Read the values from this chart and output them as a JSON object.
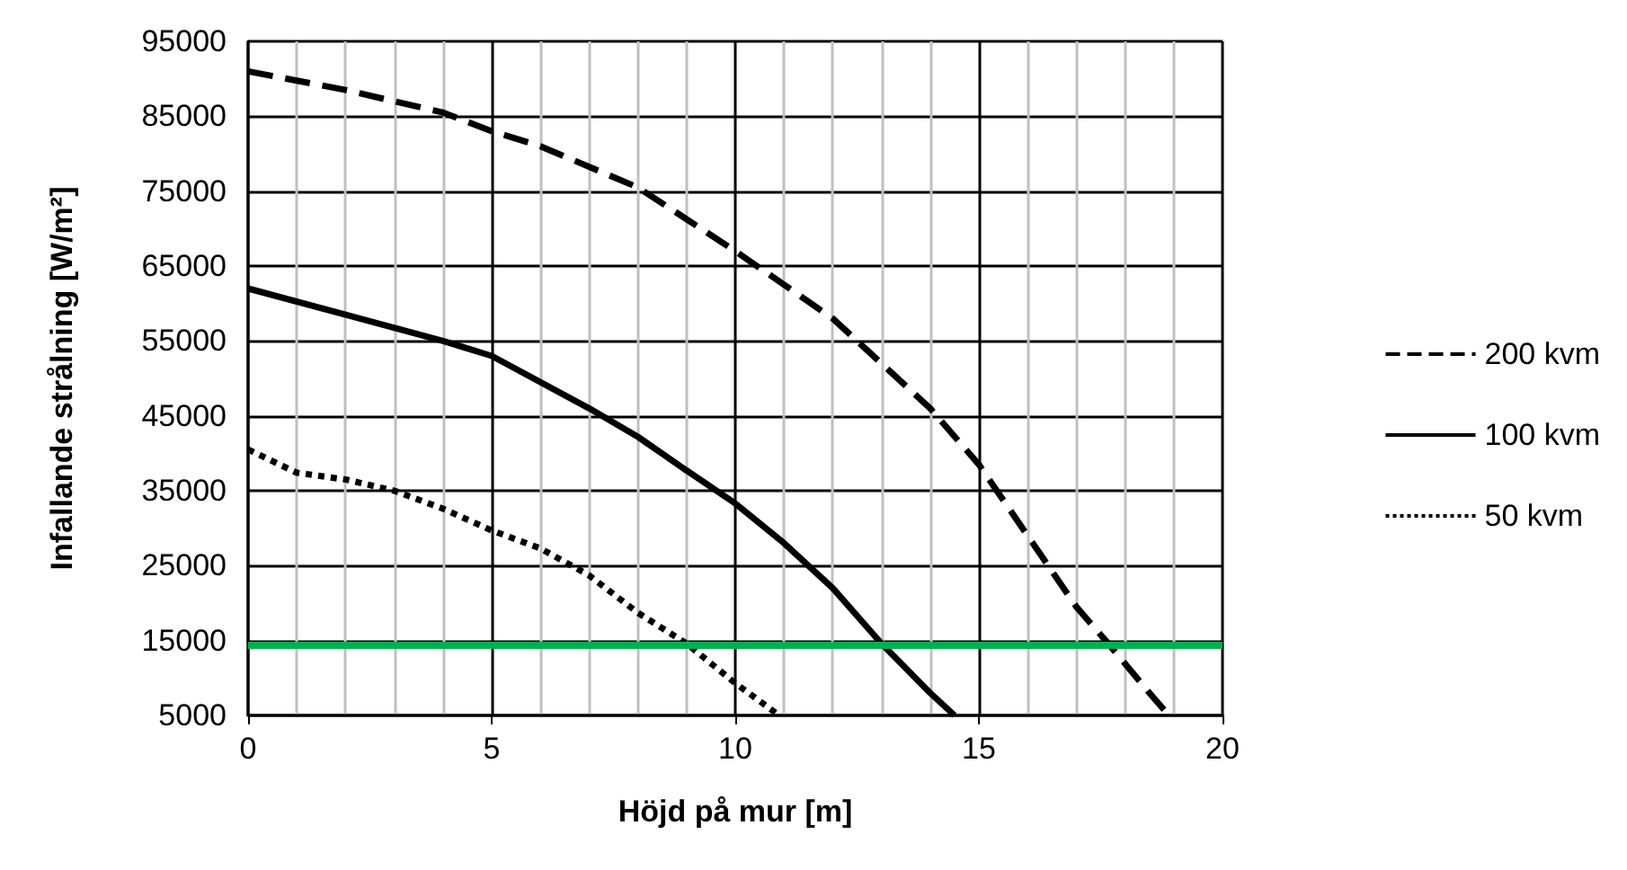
{
  "chart_data": {
    "type": "line",
    "xlabel": "Höjd på mur [m]",
    "ylabel": "Infallande strålning [W/m²]",
    "xlim": [
      0,
      20
    ],
    "xticks": [
      0,
      5,
      10,
      15,
      20
    ],
    "ylim": [
      5000,
      95000
    ],
    "yticks": [
      5000,
      15000,
      25000,
      35000,
      45000,
      55000,
      65000,
      75000,
      85000,
      95000
    ],
    "grid": true,
    "legend": "right",
    "marker": "none",
    "series": [
      {
        "name": "200 kvm",
        "color": "#000000",
        "line_style": "dashed",
        "x": [
          0,
          2,
          4,
          5,
          6,
          8,
          10,
          12,
          14,
          15,
          16,
          17,
          17.6,
          18.5,
          18.9
        ],
        "values": [
          91000,
          88500,
          85500,
          83000,
          81000,
          75500,
          67000,
          58000,
          46000,
          38500,
          29000,
          19500,
          15000,
          8000,
          5000
        ]
      },
      {
        "name": "100 kvm",
        "color": "#000000",
        "line_style": "solid",
        "x": [
          0,
          2,
          4,
          5,
          7,
          8,
          9,
          10,
          11,
          12,
          13,
          14,
          14.5
        ],
        "values": [
          62000,
          58500,
          55000,
          53000,
          46000,
          42200,
          37700,
          33300,
          28000,
          22000,
          14600,
          8000,
          5000
        ]
      },
      {
        "name": "50 kvm",
        "color": "#000000",
        "line_style": "dotted",
        "x": [
          0,
          1,
          2,
          3,
          4,
          5,
          6,
          7,
          8,
          9,
          10,
          10.9
        ],
        "values": [
          40500,
          37400,
          36500,
          35000,
          32600,
          29700,
          27300,
          23700,
          18700,
          14600,
          9300,
          5000
        ]
      }
    ],
    "ref_lines": [
      {
        "axis": "y",
        "value": 14500,
        "color": "#00b050",
        "line_style": "solid"
      }
    ]
  }
}
